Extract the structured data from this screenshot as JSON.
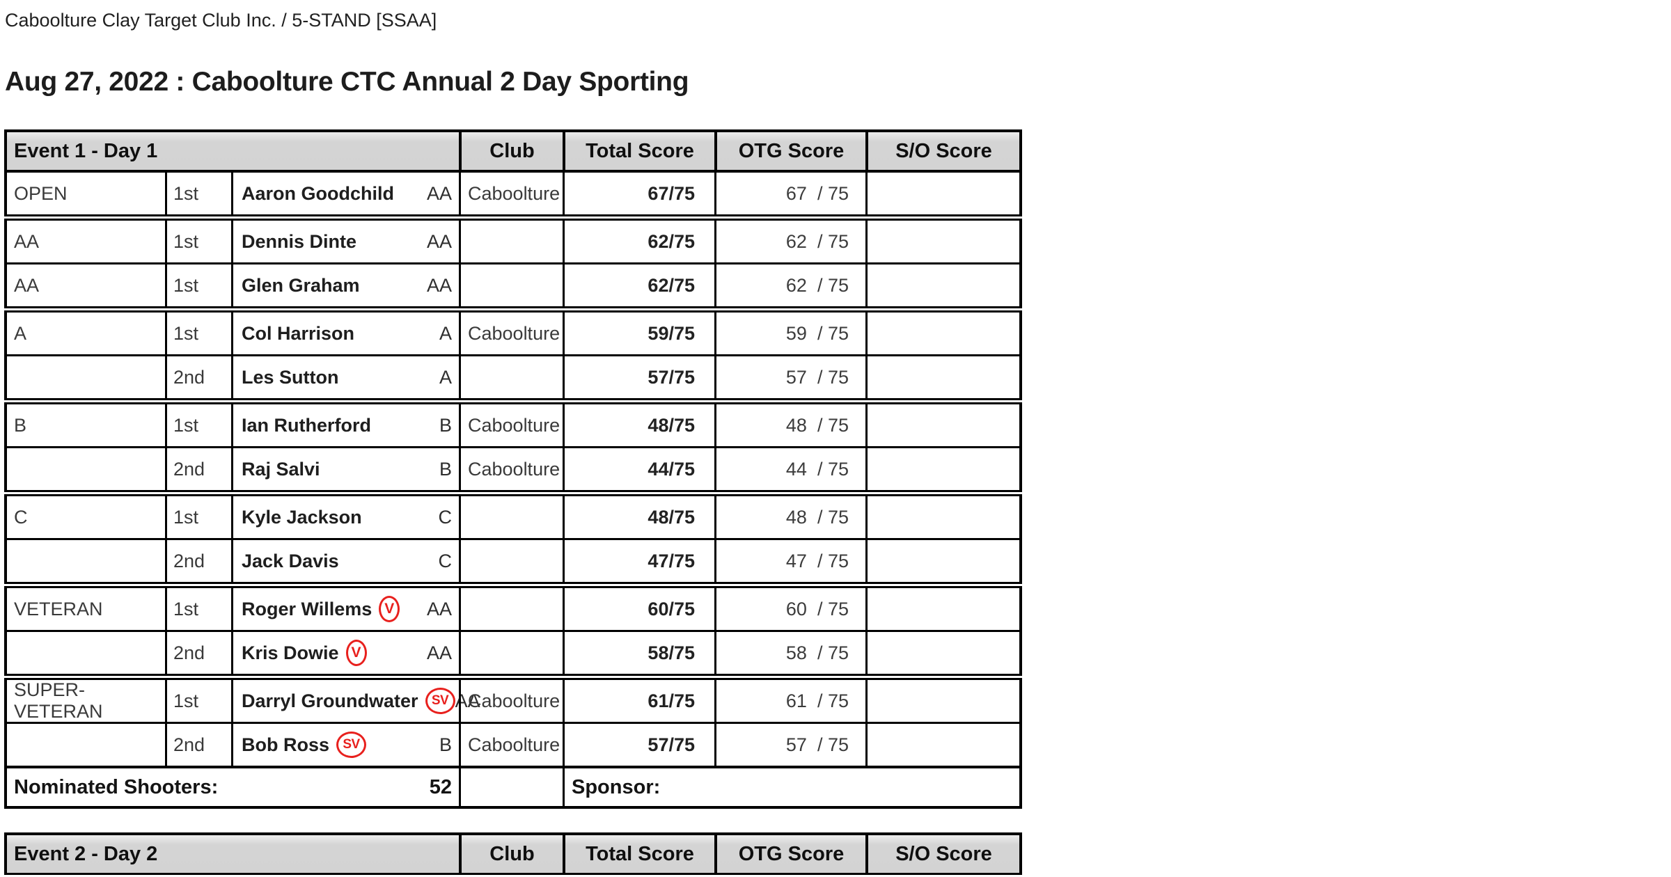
{
  "page": {
    "breadcrumb": "Caboolture Clay Target Club Inc. / 5-STAND [SSAA]",
    "title": "Aug 27, 2022 : Caboolture CTC Annual 2 Day Sporting"
  },
  "colors": {
    "header_bg": "#d4d4d4",
    "border": "#000000",
    "badge_red": "#e8201d",
    "text_primary": "#212121",
    "text_secondary": "#3a3a3a"
  },
  "event1": {
    "header": {
      "event": "Event 1 - Day 1",
      "club": "Club",
      "total": "Total Score",
      "otg": "OTG Score",
      "so": "S/O Score"
    },
    "otg_suffix": "/ 75",
    "rows": [
      {
        "category": "OPEN",
        "place": "1st",
        "name": "Aaron Goodchild",
        "grade": "AA",
        "club": "Caboolture",
        "total": "67/75",
        "otg": "67",
        "so": ""
      },
      {
        "category": "AA",
        "place": "1st",
        "name": "Dennis Dinte",
        "grade": "AA",
        "club": "",
        "total": "62/75",
        "otg": "62",
        "so": ""
      },
      {
        "category": "AA",
        "place": "1st",
        "name": "Glen Graham",
        "grade": "AA",
        "club": "",
        "total": "62/75",
        "otg": "62",
        "so": ""
      },
      {
        "category": "A",
        "place": "1st",
        "name": "Col Harrison",
        "grade": "A",
        "club": "Caboolture",
        "total": "59/75",
        "otg": "59",
        "so": ""
      },
      {
        "category": "",
        "place": "2nd",
        "name": "Les Sutton",
        "grade": "A",
        "club": "",
        "total": "57/75",
        "otg": "57",
        "so": ""
      },
      {
        "category": "B",
        "place": "1st",
        "name": "Ian Rutherford",
        "grade": "B",
        "club": "Caboolture",
        "total": "48/75",
        "otg": "48",
        "so": ""
      },
      {
        "category": "",
        "place": "2nd",
        "name": "Raj Salvi",
        "grade": "B",
        "club": "Caboolture",
        "total": "44/75",
        "otg": "44",
        "so": ""
      },
      {
        "category": "C",
        "place": "1st",
        "name": "Kyle Jackson",
        "grade": "C",
        "club": "",
        "total": "48/75",
        "otg": "48",
        "so": ""
      },
      {
        "category": "",
        "place": "2nd",
        "name": "Jack Davis",
        "grade": "C",
        "club": "",
        "total": "47/75",
        "otg": "47",
        "so": ""
      },
      {
        "category": "VETERAN",
        "place": "1st",
        "name": "Roger Willems",
        "badge": "V",
        "grade": "AA",
        "club": "",
        "total": "60/75",
        "otg": "60",
        "so": ""
      },
      {
        "category": "",
        "place": "2nd",
        "name": "Kris Dowie",
        "badge": "V",
        "grade": "AA",
        "club": "",
        "total": "58/75",
        "otg": "58",
        "so": ""
      },
      {
        "category": "SUPER-VETERAN",
        "place": "1st",
        "name": "Darryl Groundwater",
        "badge": "SV",
        "grade": "AA",
        "club": "Caboolture",
        "total": "61/75",
        "otg": "61",
        "so": ""
      },
      {
        "category": "",
        "place": "2nd",
        "name": "Bob Ross",
        "badge": "SV",
        "grade": "B",
        "club": "Caboolture",
        "total": "57/75",
        "otg": "57",
        "so": ""
      }
    ],
    "footer": {
      "nominated_label": "Nominated Shooters:",
      "nominated_value": "52",
      "sponsor_label": "Sponsor:"
    }
  },
  "event2": {
    "header": {
      "event": "Event 2 - Day 2",
      "club": "Club",
      "total": "Total Score",
      "otg": "OTG Score",
      "so": "S/O Score"
    }
  }
}
